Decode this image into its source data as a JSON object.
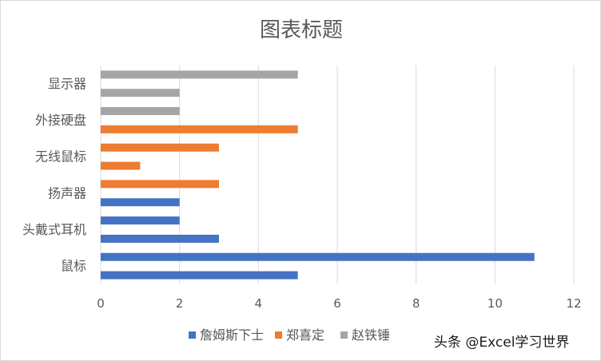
{
  "chart_data": {
    "type": "bar",
    "orientation": "horizontal",
    "title": "图表标题",
    "xlim": [
      0,
      12
    ],
    "xticks": [
      0,
      2,
      4,
      6,
      8,
      10,
      12
    ],
    "grid": "vertical",
    "legend_position": "bottom",
    "category_labels_shown": [
      "显示器",
      "外接硬盘",
      "无线鼠标",
      "扬声器",
      "头戴式耳机",
      "鼠标"
    ],
    "bars_top_to_bottom": [
      {
        "series": "赵铁锤",
        "value": 5
      },
      {
        "series": "赵铁锤",
        "value": 2
      },
      {
        "series": "赵铁锤",
        "value": 2
      },
      {
        "series": "郑喜定",
        "value": 5
      },
      {
        "series": "郑喜定",
        "value": 3
      },
      {
        "series": "郑喜定",
        "value": 1
      },
      {
        "series": "郑喜定",
        "value": 3
      },
      {
        "series": "詹姆斯下士",
        "value": 2
      },
      {
        "series": "詹姆斯下士",
        "value": 2
      },
      {
        "series": "詹姆斯下士",
        "value": 3
      },
      {
        "series": "詹姆斯下士",
        "value": 11
      },
      {
        "series": "詹姆斯下士",
        "value": 5
      }
    ],
    "series": [
      {
        "name": "詹姆斯下士",
        "color": "#4472c4"
      },
      {
        "name": "郑喜定",
        "color": "#ed7d31"
      },
      {
        "name": "赵铁锤",
        "color": "#a5a5a5"
      }
    ]
  },
  "watermark": "头条 @Excel学习世界"
}
